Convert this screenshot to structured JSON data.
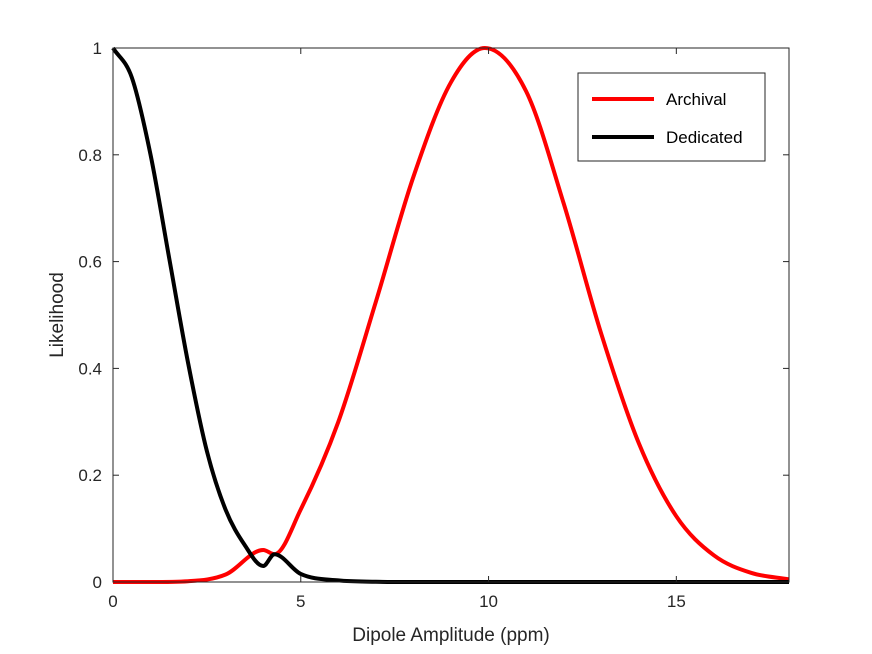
{
  "chart_data": {
    "type": "line",
    "xlabel": "Dipole Amplitude (ppm)",
    "ylabel": "Likelihood",
    "xlim": [
      0,
      18
    ],
    "ylim": [
      0,
      1
    ],
    "xticks": [
      0,
      5,
      10,
      15
    ],
    "yticks": [
      0,
      0.2,
      0.4,
      0.6,
      0.8,
      1
    ],
    "xtick_labels": [
      "0",
      "5",
      "10",
      "15"
    ],
    "ytick_labels": [
      "0",
      "0.2",
      "0.4",
      "0.6",
      "0.8",
      "1"
    ],
    "grid": false,
    "legend_position": "top-right",
    "series": [
      {
        "name": "Archival",
        "color": "#ff0000",
        "x": [
          0,
          1,
          2,
          3,
          4,
          4.3,
          5,
          6,
          7,
          8,
          9,
          9.9,
          11,
          12,
          13,
          14,
          15,
          16,
          17,
          18
        ],
        "y": [
          0.0,
          0.0,
          0.0015,
          0.014,
          0.06,
          0.052,
          0.136,
          0.3,
          0.525,
          0.759,
          0.936,
          1.0,
          0.919,
          0.709,
          0.465,
          0.26,
          0.123,
          0.05,
          0.017,
          0.005
        ]
      },
      {
        "name": "Dedicated",
        "color": "#000000",
        "x": [
          0,
          0.5,
          1,
          1.5,
          2,
          2.5,
          3,
          3.5,
          4,
          4.3,
          5,
          6,
          7,
          8,
          10,
          18
        ],
        "y": [
          1.0,
          0.945,
          0.8,
          0.605,
          0.41,
          0.245,
          0.135,
          0.07,
          0.03,
          0.052,
          0.015,
          0.003,
          0.0005,
          0.0,
          0.0,
          0.0
        ]
      }
    ]
  }
}
